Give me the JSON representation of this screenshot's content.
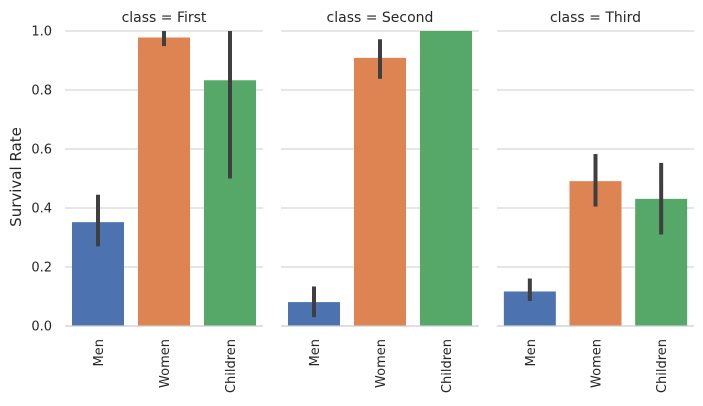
{
  "chart_data": {
    "type": "bar",
    "ylabel": "Survival Rate",
    "ylim": [
      0,
      1.0
    ],
    "yticks": [
      0.0,
      0.2,
      0.4,
      0.6,
      0.8,
      1.0
    ],
    "ytick_labels": [
      "0.0",
      "0.2",
      "0.4",
      "0.6",
      "0.8",
      "1.0"
    ],
    "grid": "horizontal",
    "categories": [
      "Men",
      "Women",
      "Children"
    ],
    "category_colors": [
      "#4c72b0",
      "#dd8452",
      "#55a868"
    ],
    "errorbar_color": "#3f3f3f",
    "panels": [
      {
        "title": "class = First",
        "values": [
          0.352,
          0.978,
          0.833
        ],
        "ci": [
          [
            0.27,
            0.445
          ],
          [
            0.949,
            1.0
          ],
          [
            0.5,
            1.0
          ]
        ]
      },
      {
        "title": "class = Second",
        "values": [
          0.081,
          0.909,
          1.0
        ],
        "ci": [
          [
            0.03,
            0.134
          ],
          [
            0.838,
            0.972
          ],
          [
            1.0,
            1.0
          ]
        ]
      },
      {
        "title": "class = Third",
        "values": [
          0.117,
          0.491,
          0.431
        ],
        "ci": [
          [
            0.085,
            0.161
          ],
          [
            0.405,
            0.583
          ],
          [
            0.31,
            0.553
          ]
        ]
      }
    ]
  }
}
